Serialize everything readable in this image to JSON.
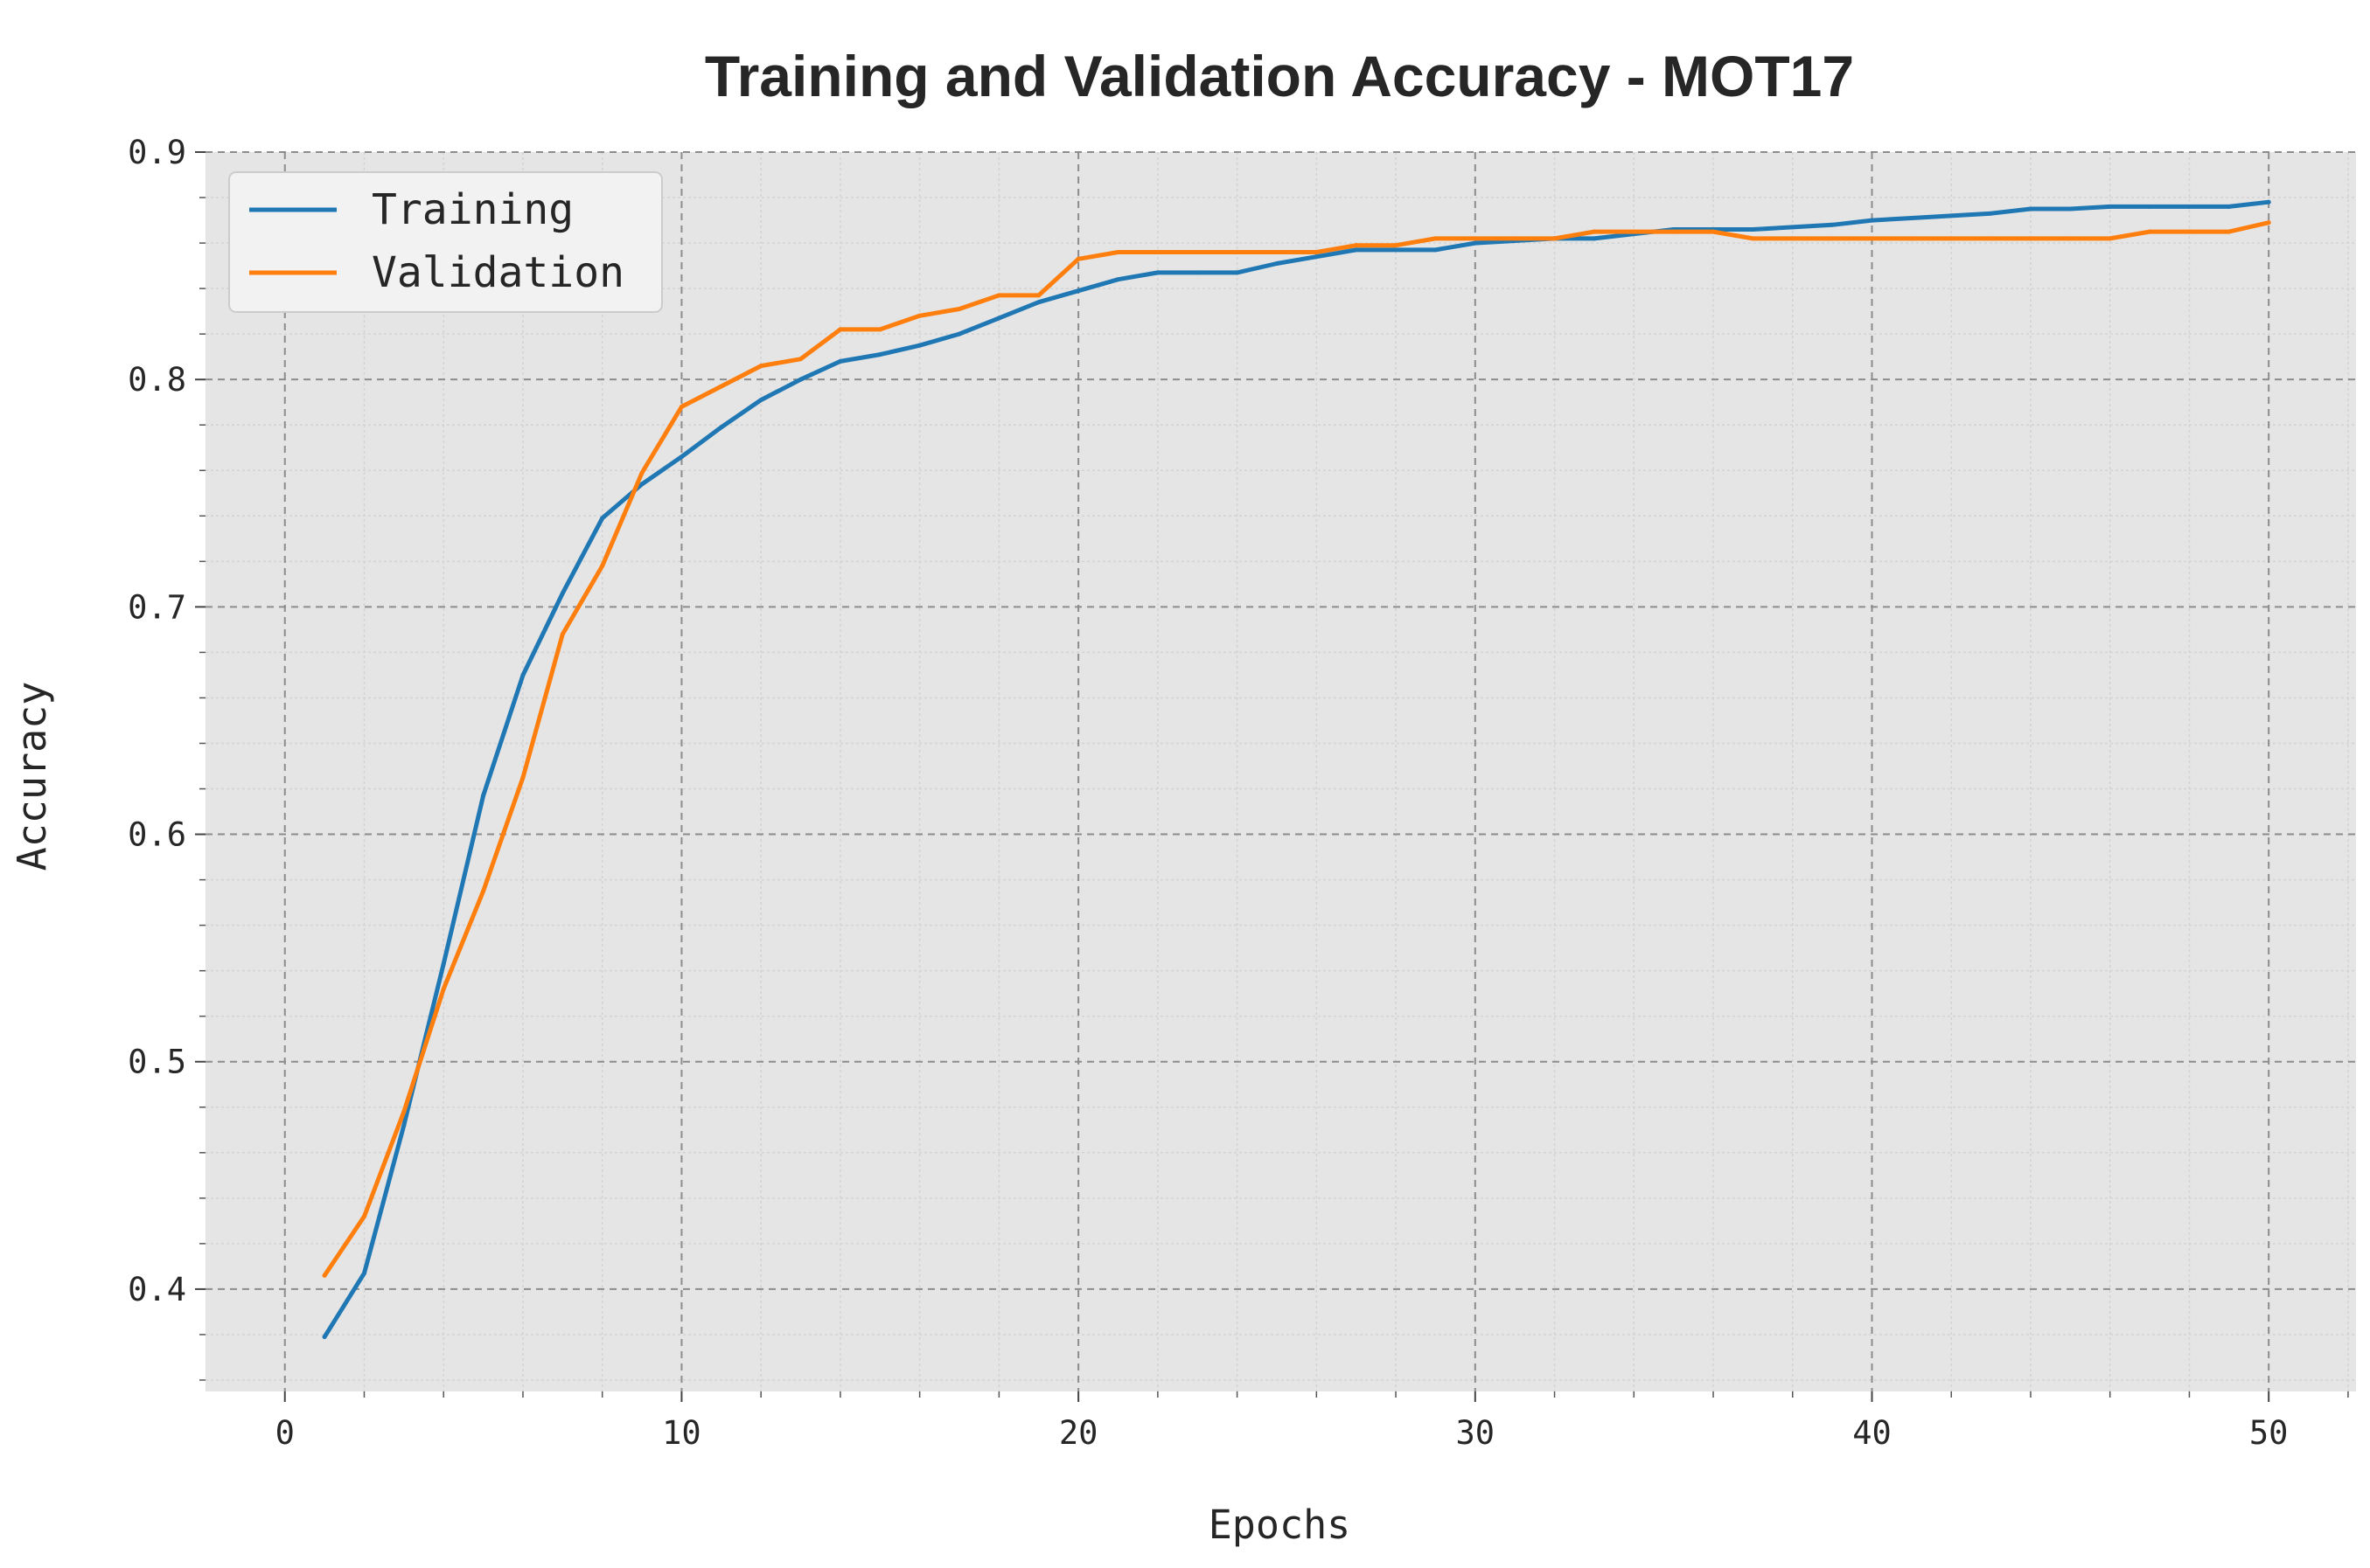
{
  "chart_data": {
    "type": "line",
    "title": "Training and Validation Accuracy - MOT17",
    "xlabel": "Epochs",
    "ylabel": "Accuracy",
    "xlim": [
      -2,
      52.2
    ],
    "ylim": [
      0.355,
      0.9
    ],
    "xticks": [
      0,
      10,
      20,
      30,
      40,
      50
    ],
    "xtick_labels": [
      "0",
      "10",
      "20",
      "30",
      "40",
      "50"
    ],
    "yticks": [
      0.4,
      0.5,
      0.6,
      0.7,
      0.8,
      0.9
    ],
    "ytick_labels": [
      "0.4",
      "0.5",
      "0.6",
      "0.7",
      "0.8",
      "0.9"
    ],
    "grid": true,
    "legend_position": "top-left",
    "x": [
      1,
      2,
      3,
      4,
      5,
      6,
      7,
      8,
      9,
      10,
      11,
      12,
      13,
      14,
      15,
      16,
      17,
      18,
      19,
      20,
      21,
      22,
      23,
      24,
      25,
      26,
      27,
      28,
      29,
      30,
      31,
      32,
      33,
      34,
      35,
      36,
      37,
      38,
      39,
      40,
      41,
      42,
      43,
      44,
      45,
      46,
      47,
      48,
      49,
      50
    ],
    "series": [
      {
        "name": "Training",
        "color": "#1f77b4",
        "values": [
          0.379,
          0.407,
          0.472,
          0.543,
          0.617,
          0.67,
          0.706,
          0.739,
          0.754,
          0.766,
          0.779,
          0.791,
          0.8,
          0.808,
          0.811,
          0.815,
          0.82,
          0.827,
          0.834,
          0.839,
          0.844,
          0.847,
          0.847,
          0.847,
          0.851,
          0.854,
          0.857,
          0.857,
          0.857,
          0.86,
          0.861,
          0.862,
          0.862,
          0.864,
          0.866,
          0.866,
          0.866,
          0.867,
          0.868,
          0.87,
          0.871,
          0.872,
          0.873,
          0.875,
          0.875,
          0.876,
          0.876,
          0.876,
          0.876,
          0.878
        ]
      },
      {
        "name": "Validation",
        "color": "#ff7f0e",
        "values": [
          0.406,
          0.432,
          0.478,
          0.532,
          0.575,
          0.625,
          0.688,
          0.718,
          0.759,
          0.788,
          0.797,
          0.806,
          0.809,
          0.822,
          0.822,
          0.828,
          0.831,
          0.837,
          0.837,
          0.853,
          0.856,
          0.856,
          0.856,
          0.856,
          0.856,
          0.856,
          0.859,
          0.859,
          0.862,
          0.862,
          0.862,
          0.862,
          0.865,
          0.865,
          0.865,
          0.865,
          0.862,
          0.862,
          0.862,
          0.862,
          0.862,
          0.862,
          0.862,
          0.862,
          0.862,
          0.862,
          0.865,
          0.865,
          0.865,
          0.869
        ]
      }
    ]
  }
}
